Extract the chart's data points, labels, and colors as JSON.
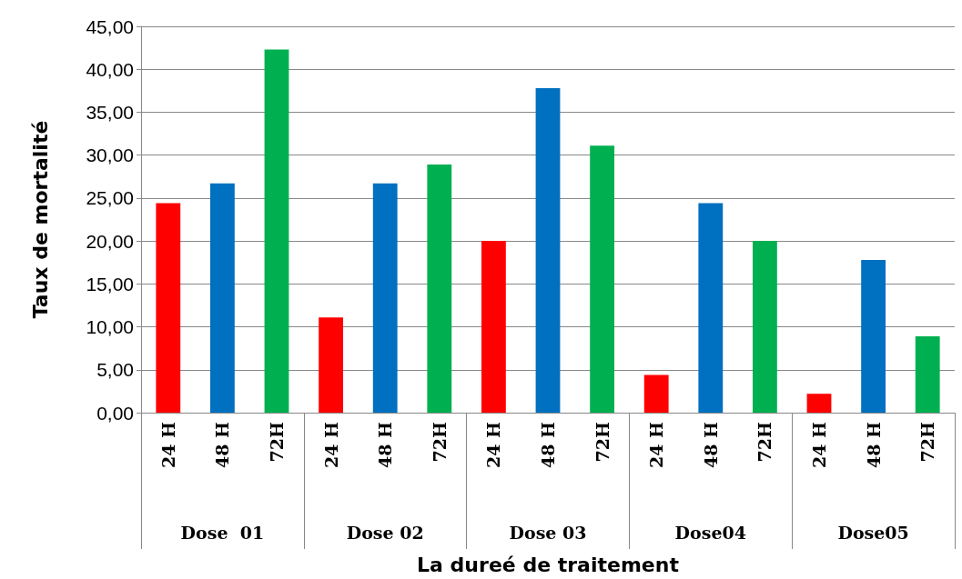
{
  "chart_data": {
    "type": "bar",
    "xlabel": "La dureé de traitement",
    "ylabel": "Taux de mortalité",
    "categories": [
      "24 H",
      "48 H",
      "72H",
      "24 H",
      "48 H",
      "72H",
      "24 H",
      "48 H",
      "72H",
      "24 H",
      "48 H",
      "72H",
      "24 H",
      "48 H",
      "72H"
    ],
    "values": [
      24.4,
      26.7,
      42.3,
      11.1,
      26.7,
      28.9,
      20.0,
      37.8,
      31.1,
      4.4,
      24.4,
      20.0,
      2.2,
      17.8,
      8.9
    ],
    "colors": [
      "#ff0000",
      "#0070c0",
      "#00b050",
      "#ff0000",
      "#0070c0",
      "#00b050",
      "#ff0000",
      "#0070c0",
      "#00b050",
      "#ff0000",
      "#0070c0",
      "#00b050",
      "#ff0000",
      "#0070c0",
      "#00b050"
    ],
    "annotations": [
      "Dose  01",
      "Dose 02",
      "Dose 03",
      "Dose04",
      "Dose05"
    ],
    "ylim": [
      0,
      45
    ],
    "yticks": [
      {
        "value": 0,
        "label": "0,00"
      },
      {
        "value": 5,
        "label": "5,00"
      },
      {
        "value": 10,
        "label": "10,00"
      },
      {
        "value": 15,
        "label": "15,00"
      },
      {
        "value": 20,
        "label": "20,00"
      },
      {
        "value": 25,
        "label": "25,00"
      },
      {
        "value": 30,
        "label": "30,00"
      },
      {
        "value": 35,
        "label": "35,00"
      },
      {
        "value": 40,
        "label": "40,00"
      },
      {
        "value": 45,
        "label": "45,00"
      }
    ],
    "grid": "y"
  }
}
